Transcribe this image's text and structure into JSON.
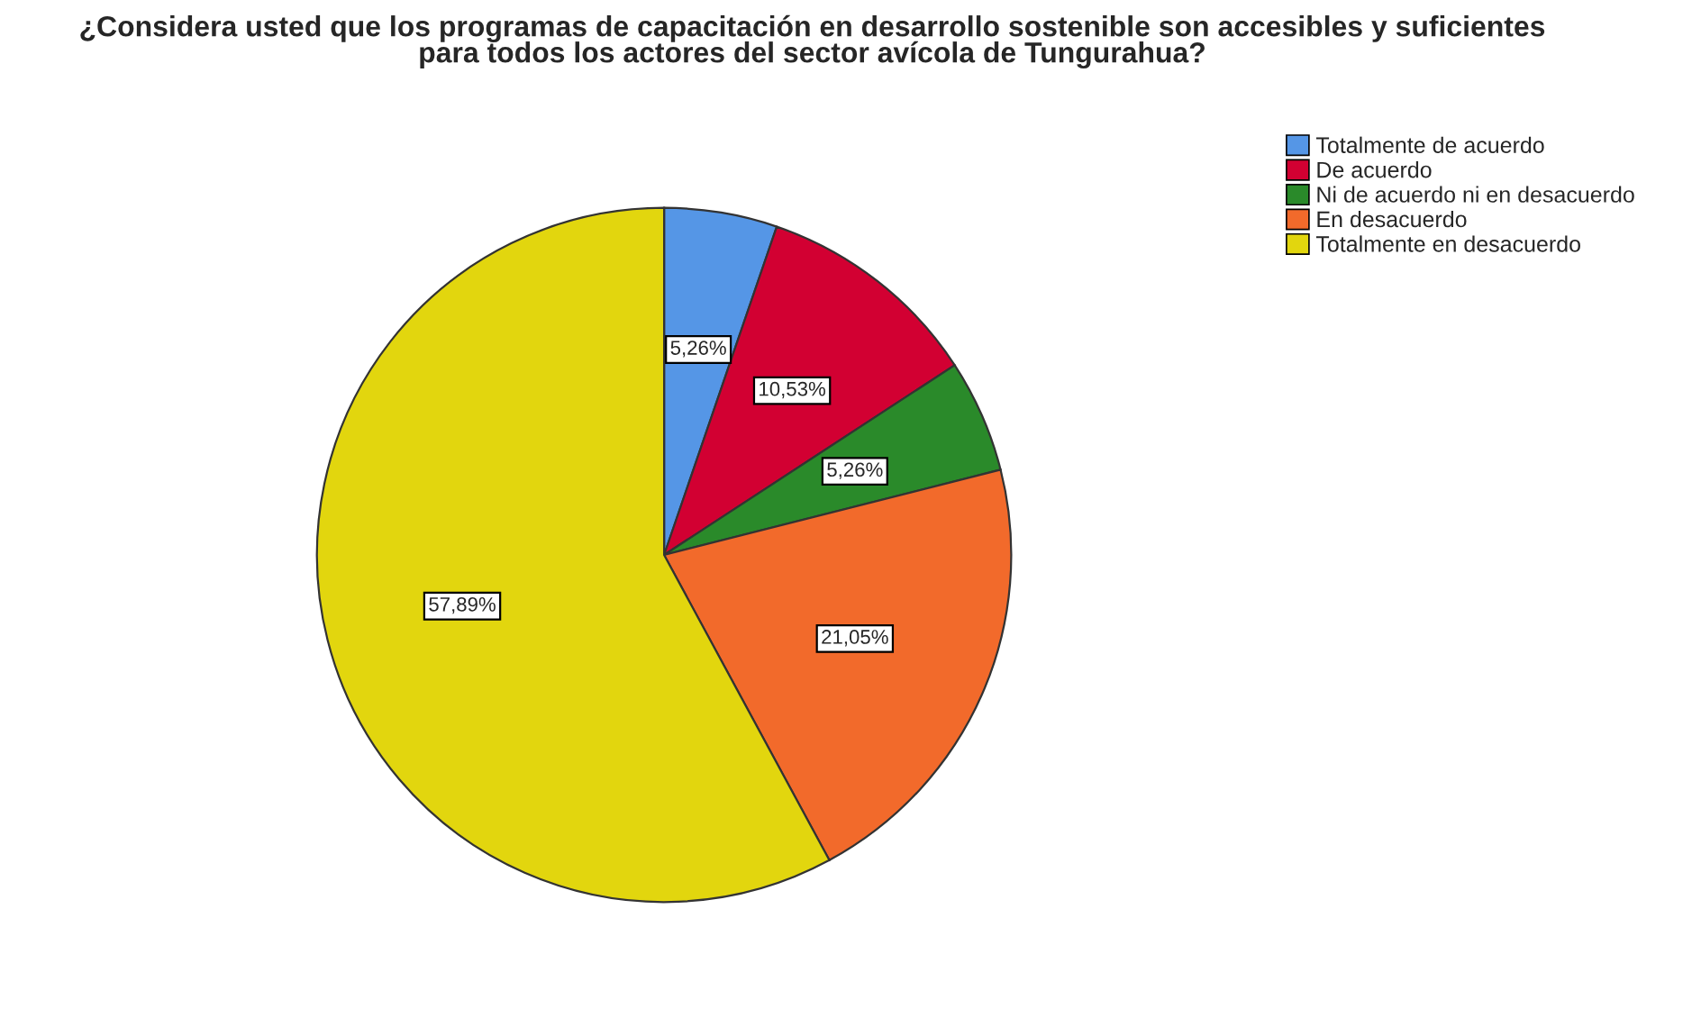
{
  "chart_data": {
    "type": "pie",
    "title": "¿Considera usted que los programas de capacitación en desarrollo sostenible son accesibles y suficientes\npara todos los actores del sector avícola de Tungurahua?",
    "categories": [
      "Totalmente de acuerdo",
      "De acuerdo",
      "Ni de acuerdo ni en desacuerdo",
      "En desacuerdo",
      "Totalmente en desacuerdo"
    ],
    "values": [
      5.26,
      10.53,
      5.26,
      21.05,
      57.89
    ],
    "value_labels": [
      "5,26%",
      "10,53%",
      "5,26%",
      "21,05%",
      "57,89%"
    ],
    "colors": [
      "#5596e6",
      "#d20032",
      "#2a8a2a",
      "#f26a2b",
      "#e2d60e"
    ],
    "legend": "top right"
  }
}
